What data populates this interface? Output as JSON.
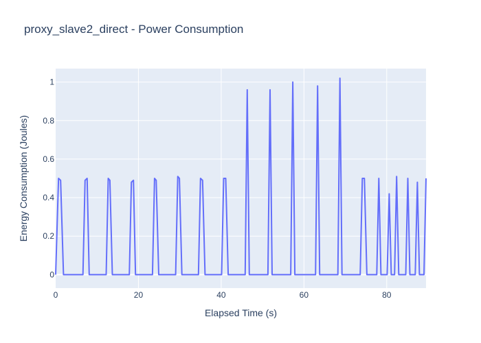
{
  "chart_data": {
    "type": "line",
    "title": "proxy_slave2_direct - Power Consumption",
    "xlabel": "Elapsed Time (s)",
    "ylabel": "Energy Consumption (Joules)",
    "xlim": [
      0,
      89.5
    ],
    "ylim": [
      -0.07,
      1.07
    ],
    "x_ticks": [
      0,
      20,
      40,
      60,
      80
    ],
    "y_ticks": [
      0,
      0.2,
      0.4,
      0.6,
      0.8,
      1
    ],
    "y_tick_labels": [
      "0",
      "0.2",
      "0.4",
      "0.6",
      "0.8",
      "1"
    ],
    "grid": true,
    "line_color": "#636efa",
    "background_color": "#e5ecf6",
    "series": [
      {
        "x": [
          0,
          0.7,
          1.2,
          1.9,
          6.6,
          7.1,
          7.6,
          8.1,
          12.2,
          12.7,
          13.1,
          13.7,
          17.8,
          18.3,
          18.8,
          19.3,
          23.4,
          23.9,
          24.3,
          24.9,
          29.0,
          29.5,
          29.9,
          30.5,
          34.5,
          35.0,
          35.5,
          36.1,
          40.1,
          40.6,
          41.1,
          41.7,
          45.8,
          46.3,
          46.8,
          51.3,
          51.8,
          52.3,
          56.8,
          57.3,
          57.8,
          62.8,
          63.3,
          63.8,
          68.2,
          68.7,
          69.2,
          73.6,
          74.1,
          74.6,
          75.2,
          77.6,
          78.1,
          78.6,
          80.1,
          80.6,
          81.1,
          81.9,
          82.4,
          82.9,
          84.6,
          85.1,
          85.6,
          86.9,
          87.4,
          87.9,
          89.0,
          89.5
        ],
        "y": [
          0,
          0.5,
          0.49,
          0,
          0,
          0.49,
          0.5,
          0,
          0,
          0.5,
          0.49,
          0,
          0,
          0.48,
          0.49,
          0,
          0,
          0.5,
          0.49,
          0,
          0,
          0.51,
          0.5,
          0,
          0,
          0.5,
          0.49,
          0,
          0,
          0.5,
          0.5,
          0,
          0,
          0.96,
          0,
          0,
          0.96,
          0,
          0,
          1.0,
          0,
          0,
          0.98,
          0,
          0,
          1.02,
          0,
          0,
          0.5,
          0.5,
          0,
          0,
          0.5,
          0,
          0,
          0.42,
          0,
          0,
          0.51,
          0,
          0,
          0.5,
          0,
          0,
          0.48,
          0,
          0,
          0.5
        ]
      }
    ]
  }
}
